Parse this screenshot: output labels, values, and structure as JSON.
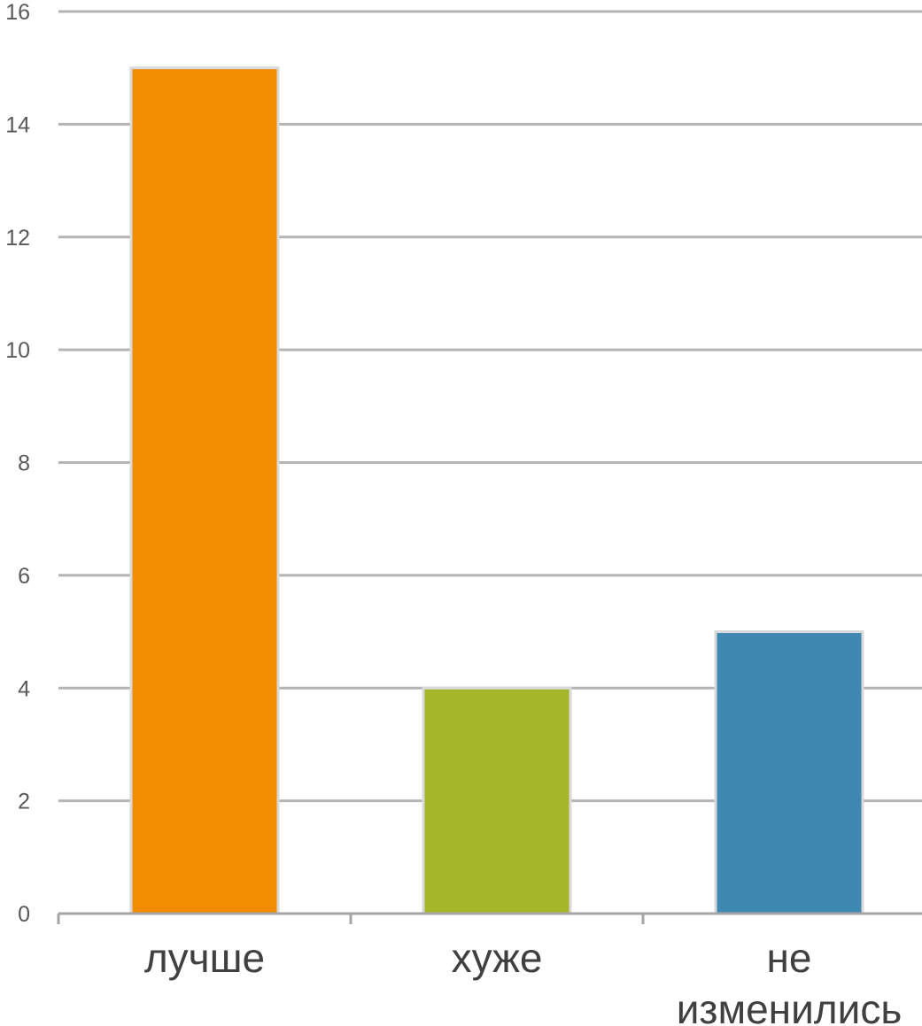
{
  "chart_data": {
    "type": "bar",
    "title": "",
    "xlabel": "",
    "ylabel": "",
    "categories": [
      "лучше",
      "хуже",
      "не изменились"
    ],
    "category_lines": [
      [
        "лучше"
      ],
      [
        "хуже"
      ],
      [
        "не",
        "изменились"
      ]
    ],
    "values": [
      15,
      4,
      5
    ],
    "colors": [
      "#F28C00",
      "#A5B62B",
      "#3F88B2"
    ],
    "ylim": [
      0,
      16
    ],
    "yticks": [
      0,
      2,
      4,
      6,
      8,
      10,
      12,
      14,
      16
    ],
    "grid": true,
    "legend": "none"
  }
}
